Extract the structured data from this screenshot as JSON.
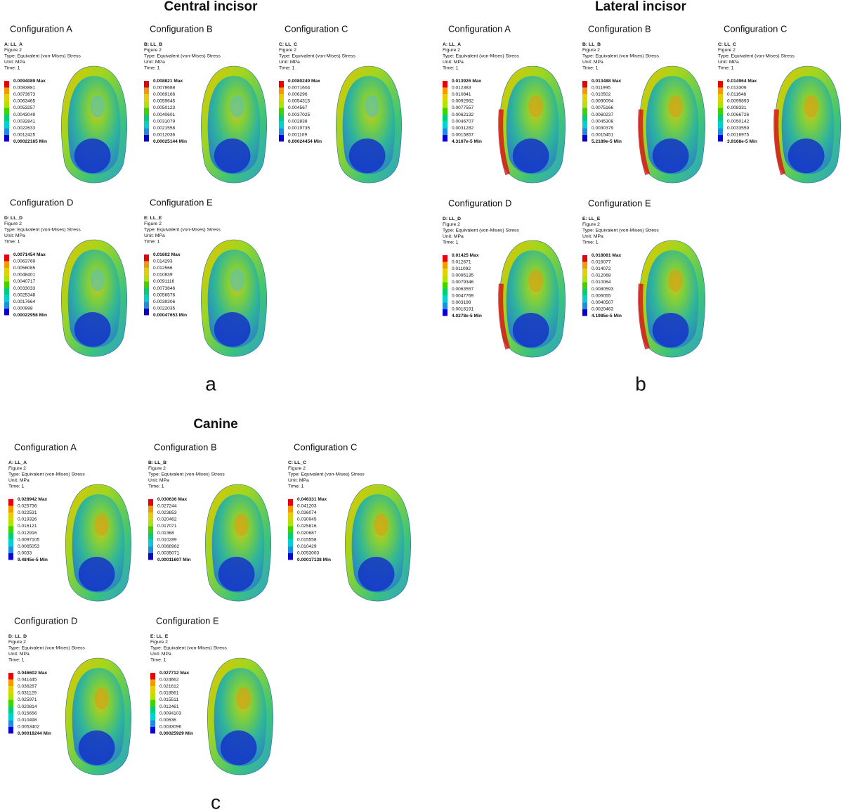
{
  "groups": [
    {
      "title": "Central incisor",
      "label": "a",
      "panels": [
        {
          "config": "Configuration A",
          "header": [
            "A: LL_A",
            "Figure 2",
            "Type: Equivalent (von-Mises) Stress",
            "Unit: MPa",
            "Time: 1"
          ],
          "legend": [
            "0.0094089 Max",
            "0.0083881",
            "0.0073673",
            "0.0063465",
            "0.0053257",
            "0.0043049",
            "0.0032841",
            "0.0022633",
            "0.0012425",
            "0.00022165 Min"
          ]
        },
        {
          "config": "Configuration B",
          "header": [
            "B: LL_B",
            "Figure 2",
            "Type: Equivalent (von-Mises) Stress",
            "Unit: MPa",
            "Time: 1"
          ],
          "legend": [
            "0.008821 Max",
            "0.0078688",
            "0.0069166",
            "0.0059645",
            "0.0050123",
            "0.0040601",
            "0.0031079",
            "0.0021558",
            "0.0012036",
            "0.00025144 Min"
          ]
        },
        {
          "config": "Configuration C",
          "header": [
            "C: LL_C",
            "Figure 2",
            "Type: Equivalent (von-Mises) Stress",
            "Unit: MPa",
            "Time: 1"
          ],
          "legend": [
            "0.0080249 Max",
            "0.0071604",
            "0.006296",
            "0.0054315",
            "0.004567",
            "0.0037025",
            "0.002838",
            "0.0019735",
            "0.001109",
            "0.00024454 Min"
          ]
        },
        {
          "config": "Configuration D",
          "header": [
            "D: LL_D",
            "Figure 2",
            "Type: Equivalent (von-Mises) Stress",
            "Unit: MPa",
            "Time: 1"
          ],
          "legend": [
            "0.0071454 Max",
            "0.0063769",
            "0.0056085",
            "0.0048401",
            "0.0040717",
            "0.0033033",
            "0.0025348",
            "0.0017664",
            "0.000998",
            "0.00022958 Min"
          ]
        },
        {
          "config": "Configuration E",
          "header": [
            "E: LL_E",
            "Figure 2",
            "Type: Equivalent (von-Mises) Stress",
            "Unit: MPa",
            "Time: 1"
          ],
          "legend": [
            "0.01602 Max",
            "0.014293",
            "0.012566",
            "0.010839",
            "0.0091116",
            "0.0073846",
            "0.0056576",
            "0.0039306",
            "0.0022035",
            "0.00047653 Min"
          ]
        }
      ]
    },
    {
      "title": "Lateral incisor",
      "label": "b",
      "panels": [
        {
          "config": "Configuration A",
          "header": [
            "A: LL_A",
            "Figure 2",
            "Type: Equivalent (von-Mises) Stress",
            "Unit: MPa",
            "Time: 1"
          ],
          "legend": [
            "0.013926 Max",
            "0.012383",
            "0.010841",
            "0.0092982",
            "0.0077557",
            "0.0062132",
            "0.0046707",
            "0.0031282",
            "0.0015857",
            "4.3167e-5 Min"
          ]
        },
        {
          "config": "Configuration B",
          "header": [
            "B: LL_B",
            "Figure 2",
            "Type: Equivalent (von-Mises) Stress",
            "Unit: MPa",
            "Time: 1"
          ],
          "legend": [
            "0.013488 Max",
            "0.011995",
            "0.010502",
            "0.0090094",
            "0.0075166",
            "0.0060237",
            "0.0045308",
            "0.0030379",
            "0.0015451",
            "5.2189e-5 Min"
          ]
        },
        {
          "config": "Configuration C",
          "header": [
            "C: LL_C",
            "Figure 2",
            "Type: Equivalent (von-Mises) Stress",
            "Unit: MPa",
            "Time: 1"
          ],
          "legend": [
            "0.014964 Max",
            "0.013306",
            "0.011648",
            "0.0099893",
            "0.008331",
            "0.0066726",
            "0.0050142",
            "0.0033559",
            "0.0016975",
            "3.9168e-5 Min"
          ]
        },
        {
          "config": "Configuration D",
          "header": [
            "D: LL_D",
            "Figure 2",
            "Type: Equivalent (von-Mises) Stress",
            "Unit: MPa",
            "Time: 1"
          ],
          "legend": [
            "0.01425 Max",
            "0.012671",
            "0.011092",
            "0.0095135",
            "0.0079346",
            "0.0063557",
            "0.0047769",
            "0.003198",
            "0.0016191",
            "4.0278e-5 Min"
          ]
        },
        {
          "config": "Configuration E",
          "header": [
            "E: LL_E",
            "Figure 2",
            "Type: Equivalent (von-Mises) Stress",
            "Unit: MPa",
            "Time: 1"
          ],
          "legend": [
            "0.018081 Max",
            "0.016077",
            "0.014072",
            "0.012068",
            "0.010064",
            "0.0080593",
            "0.006055",
            "0.0040507",
            "0.0020463",
            "4.1985e-5 Min"
          ]
        }
      ]
    },
    {
      "title": "Canine",
      "label": "c",
      "panels": [
        {
          "config": "Configuration A",
          "header": [
            "A: LL_A",
            "Figure 2",
            "Type: Equivalent (von-Mises) Stress",
            "Unit: MPa",
            "Time: 1"
          ],
          "legend": [
            "0.028942 Max",
            "0.025736",
            "0.022531",
            "0.019326",
            "0.016121",
            "0.012916",
            "0.0097105",
            "0.0065053",
            "0.0033",
            "9.4845e-5 Min"
          ]
        },
        {
          "config": "Configuration B",
          "header": [
            "B: LL_B",
            "Figure 2",
            "Type: Equivalent (von-Mises) Stress",
            "Unit: MPa",
            "Time: 1"
          ],
          "legend": [
            "0.030636 Max",
            "0.027244",
            "0.023853",
            "0.020462",
            "0.017071",
            "0.01368",
            "0.010289",
            "0.0068982",
            "0.0035071",
            "0.00011607 Min"
          ]
        },
        {
          "config": "Configuration C",
          "header": [
            "C: LL_C",
            "Figure 2",
            "Type: Equivalent (von-Mises) Stress",
            "Unit: MPa",
            "Time: 1"
          ],
          "legend": [
            "0.046331 Max",
            "0.041203",
            "0.036074",
            "0.030945",
            "0.025816",
            "0.020687",
            "0.015558",
            "0.010429",
            "0.0053003",
            "0.00017138 Min"
          ]
        },
        {
          "config": "Configuration D",
          "header": [
            "D: LL_D",
            "Figure 2",
            "Type: Equivalent (von-Mises) Stress",
            "Unit: MPa",
            "Time: 1"
          ],
          "legend": [
            "0.046602 Max",
            "0.041445",
            "0.036287",
            "0.031129",
            "0.025971",
            "0.020814",
            "0.015656",
            "0.010498",
            "0.0053402",
            "0.00018244 Min"
          ]
        },
        {
          "config": "Configuration E",
          "header": [
            "E: LL_E",
            "Figure 2",
            "Type: Equivalent (von-Mises) Stress",
            "Unit: MPa",
            "Time: 1"
          ],
          "legend": [
            "0.027712 Max",
            "0.024662",
            "0.021612",
            "0.018561",
            "0.015511",
            "0.012461",
            "0.0094103",
            "0.00636",
            "0.0033096",
            "0.00025929 Min"
          ]
        }
      ]
    }
  ]
}
